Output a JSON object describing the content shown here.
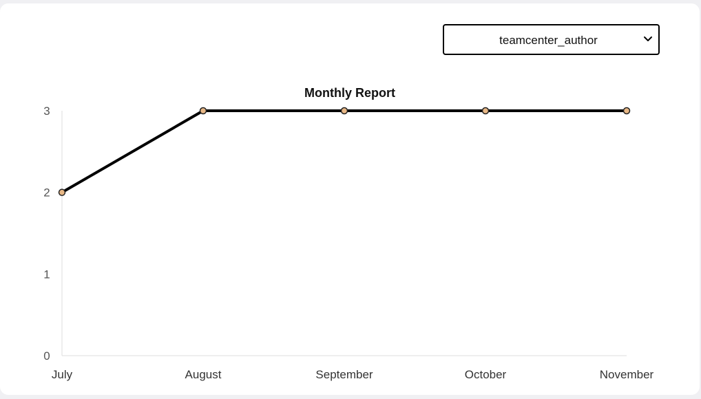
{
  "filter": {
    "selected": "teamcenter_author",
    "icon": "chevron-down-icon"
  },
  "chart_data": {
    "type": "line",
    "title": "Monthly Report",
    "categories": [
      "July",
      "August",
      "September",
      "October",
      "November"
    ],
    "series": [
      {
        "name": "teamcenter_author",
        "values": [
          2,
          3,
          3,
          3,
          3
        ]
      }
    ],
    "ylim": [
      0,
      3
    ],
    "yticks": [
      0,
      1,
      2,
      3
    ],
    "xlabel": "",
    "ylabel": "",
    "grid": false,
    "colors": {
      "line": "#000000",
      "point_fill": "#e8b886",
      "point_stroke": "#222222",
      "axis": "#dddddd"
    }
  }
}
